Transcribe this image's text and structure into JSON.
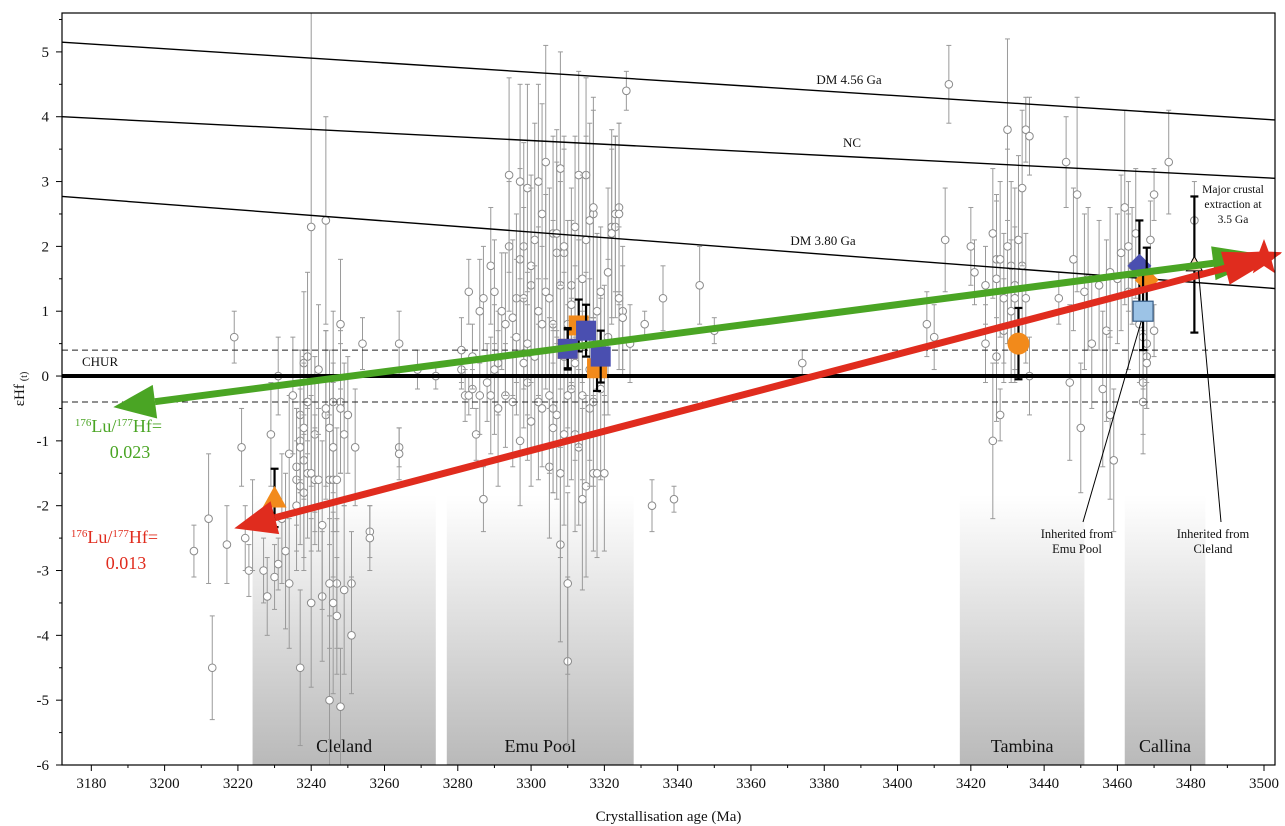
{
  "chart_data": {
    "type": "scatter",
    "xlabel": "Crystallisation age (Ma)",
    "ylabel_main": "εHf",
    "ylabel_sub": "(t)",
    "xlim": [
      3172,
      3503
    ],
    "ylim": [
      -6,
      5.6
    ],
    "xticks": [
      3180,
      3200,
      3220,
      3240,
      3260,
      3280,
      3300,
      3320,
      3340,
      3360,
      3380,
      3400,
      3420,
      3440,
      3460,
      3480,
      3500
    ],
    "yticks": [
      -6,
      -5,
      -4,
      -3,
      -2,
      -1,
      0,
      1,
      2,
      3,
      4,
      5
    ],
    "reference_lines": [
      {
        "name": "DM 4.56 Ga",
        "x": [
          3172,
          3503
        ],
        "y": [
          5.15,
          3.95
        ]
      },
      {
        "name": "NC",
        "x": [
          3172,
          3503
        ],
        "y": [
          4.0,
          3.05
        ]
      },
      {
        "name": "DM 3.80 Ga",
        "x": [
          3172,
          3503
        ],
        "y": [
          2.77,
          1.35
        ]
      }
    ],
    "chur": {
      "label": "CHUR",
      "y": 0,
      "band": [
        -0.4,
        0.4
      ]
    },
    "units": [
      {
        "name": "Cleland",
        "x0": 3224,
        "x1": 3274
      },
      {
        "name": "Emu Pool",
        "x0": 3277,
        "x1": 3328
      },
      {
        "name": "Tambina",
        "x0": 3417,
        "x1": 3451
      },
      {
        "name": "Callina",
        "x0": 3462,
        "x1": 3484
      }
    ],
    "arrows": [
      {
        "label_pre": "176",
        "label_mid": "Lu/",
        "label_pre2": "177",
        "label_post": "Hf=",
        "value": "0.023",
        "color": "#4aa524",
        "from": [
          3497,
          1.82
        ],
        "to": [
          3186,
          -0.48
        ]
      },
      {
        "label_pre": "176",
        "label_mid": "Lu/",
        "label_pre2": "177",
        "label_post": "Hf=",
        "value": "0.013",
        "color": "#e02c1e",
        "from": [
          3500,
          1.82
        ],
        "to": [
          3219,
          -2.35
        ]
      }
    ],
    "annotations": [
      {
        "text": [
          "Major crustal",
          "extraction at",
          "3.5 Ga"
        ]
      },
      {
        "text": [
          "Inherited from",
          "Emu Pool"
        ]
      },
      {
        "text": [
          "Inherited from",
          "Cleland"
        ]
      }
    ],
    "mean_symbols": [
      {
        "shape": "triangle",
        "color": "#f28a1b",
        "x": 3230,
        "y": -1.88,
        "err": 0.45
      },
      {
        "shape": "square",
        "color": "#f28a1b",
        "x": 3313,
        "y": 0.78,
        "err": 0.4
      },
      {
        "shape": "square",
        "color": "#f28a1b",
        "x": 3318,
        "y": 0.12,
        "err": 0.35
      },
      {
        "shape": "square",
        "color": "#f28a1b",
        "x": 3310,
        "y": 0.42,
        "err": 0.3
      },
      {
        "shape": "square",
        "color": "#4a4fb0",
        "x": 3310,
        "y": 0.42,
        "err": 0.32
      },
      {
        "shape": "square",
        "color": "#4a4fb0",
        "x": 3315,
        "y": 0.7,
        "err": 0.4
      },
      {
        "shape": "square",
        "color": "#4a4fb0",
        "x": 3319,
        "y": 0.3,
        "err": 0.4
      },
      {
        "shape": "circle",
        "color": "#f28a1b",
        "x": 3433,
        "y": 0.5,
        "err": 0.55
      },
      {
        "shape": "diamond",
        "color": "#4a4fb0",
        "x": 3466,
        "y": 1.7,
        "err": 0.7
      },
      {
        "shape": "diamond",
        "color": "#f28a1b",
        "x": 3468,
        "y": 1.48,
        "err": 0.5
      },
      {
        "shape": "square",
        "color": "#9cc3e6",
        "x": 3467,
        "y": 1.0,
        "err": 0.6
      },
      {
        "shape": "triangle",
        "color": "#f7d9bf",
        "x": 3481,
        "y": 1.72,
        "err": 1.05
      }
    ],
    "points": [
      [
        3208,
        -2.7,
        0.4
      ],
      [
        3213,
        -4.5,
        0.8
      ],
      [
        3212,
        -2.2,
        1.0
      ],
      [
        3217,
        -2.6,
        0.6
      ],
      [
        3219,
        0.6,
        0.4
      ],
      [
        3221,
        -1.1,
        0.6
      ],
      [
        3222,
        -2.5,
        0.5
      ],
      [
        3223,
        -3.0,
        0.4
      ],
      [
        3224,
        -2.3,
        0.7
      ],
      [
        3227,
        -3.0,
        0.5
      ],
      [
        3228,
        -3.4,
        0.6
      ],
      [
        3229,
        -0.9,
        0.8
      ],
      [
        3230,
        -3.1,
        0.5
      ],
      [
        3231,
        -2.9,
        0.4
      ],
      [
        3231,
        0.0,
        0.6
      ],
      [
        3232,
        -2.2,
        1.0
      ],
      [
        3233,
        -2.7,
        1.2
      ],
      [
        3234,
        -1.2,
        0.9
      ],
      [
        3234,
        -3.2,
        1.0
      ],
      [
        3235,
        -0.3,
        0.9
      ],
      [
        3236,
        -1.6,
        1.1
      ],
      [
        3236,
        -1.4,
        0.9
      ],
      [
        3236,
        -2.0,
        1.0
      ],
      [
        3237,
        -4.5,
        1.2
      ],
      [
        3237,
        -0.6,
        1.0
      ],
      [
        3237,
        -1.0,
        0.8
      ],
      [
        3237,
        -1.7,
        0.9
      ],
      [
        3237,
        -1.1,
        0.7
      ],
      [
        3238,
        0.2,
        1.1
      ],
      [
        3238,
        -1.3,
        1.5
      ],
      [
        3238,
        -1.8,
        1.2
      ],
      [
        3238,
        -0.8,
        1.1
      ],
      [
        3239,
        0.3,
        1.3
      ],
      [
        3239,
        -1.5,
        1.0
      ],
      [
        3239,
        -0.4,
        0.8
      ],
      [
        3240,
        2.3,
        4.0
      ],
      [
        3240,
        -3.5,
        1.3
      ],
      [
        3240,
        -1.5,
        1.2
      ],
      [
        3241,
        -1.6,
        1.0
      ],
      [
        3241,
        -0.9,
        1.2
      ],
      [
        3241,
        -1.6,
        0.8
      ],
      [
        3242,
        -1.6,
        1.1
      ],
      [
        3242,
        0.1,
        1.0
      ],
      [
        3243,
        -3.4,
        1.0
      ],
      [
        3243,
        -2.3,
        1.3
      ],
      [
        3244,
        2.4,
        1.6
      ],
      [
        3244,
        -0.6,
        1.3
      ],
      [
        3244,
        -0.5,
        1.2
      ],
      [
        3245,
        -1.6,
        1.0
      ],
      [
        3245,
        -5.0,
        1.3
      ],
      [
        3245,
        -3.2,
        1.0
      ],
      [
        3245,
        -0.8,
        1.2
      ],
      [
        3246,
        -0.4,
        1.4
      ],
      [
        3246,
        -1.6,
        1.5
      ],
      [
        3246,
        -3.5,
        1.4
      ],
      [
        3246,
        -1.1,
        1.3
      ],
      [
        3247,
        -3.2,
        1.0
      ],
      [
        3247,
        -3.7,
        0.9
      ],
      [
        3247,
        -1.6,
        0.8
      ],
      [
        3248,
        0.8,
        1.0
      ],
      [
        3248,
        -0.4,
        1.1
      ],
      [
        3248,
        -5.1,
        0.9
      ],
      [
        3248,
        -0.5,
        1.0
      ],
      [
        3249,
        -0.9,
        1.1
      ],
      [
        3249,
        -3.3,
        1.3
      ],
      [
        3250,
        -0.6,
        0.9
      ],
      [
        3251,
        -3.2,
        0.8
      ],
      [
        3251,
        -4.0,
        0.9
      ],
      [
        3252,
        -1.1,
        0.9
      ],
      [
        3254,
        0.5,
        0.4
      ],
      [
        3256,
        -2.4,
        0.4
      ],
      [
        3256,
        -2.5,
        0.5
      ],
      [
        3264,
        0.5,
        0.5
      ],
      [
        3264,
        -1.1,
        0.3
      ],
      [
        3264,
        -1.2,
        0.4
      ],
      [
        3269,
        0.1,
        0.3
      ],
      [
        3274,
        0.0,
        0.2
      ],
      [
        3281,
        0.1,
        0.3
      ],
      [
        3281,
        0.4,
        0.5
      ],
      [
        3282,
        -0.3,
        0.4
      ],
      [
        3283,
        -0.3,
        0.3
      ],
      [
        3283,
        1.3,
        0.5
      ],
      [
        3284,
        -0.2,
        0.3
      ],
      [
        3284,
        0.3,
        0.5
      ],
      [
        3285,
        -0.9,
        0.4
      ],
      [
        3286,
        -0.3,
        0.6
      ],
      [
        3286,
        1.0,
        0.8
      ],
      [
        3287,
        1.2,
        0.8
      ],
      [
        3287,
        -1.9,
        0.5
      ],
      [
        3288,
        -0.1,
        0.6
      ],
      [
        3289,
        1.7,
        0.9
      ],
      [
        3289,
        -0.3,
        0.9
      ],
      [
        3290,
        1.3,
        0.8
      ],
      [
        3290,
        0.1,
        1.0
      ],
      [
        3291,
        0.2,
        0.8
      ],
      [
        3291,
        -0.5,
        1.2
      ],
      [
        3292,
        1.0,
        0.9
      ],
      [
        3293,
        -0.3,
        0.8
      ],
      [
        3293,
        0.8,
        1.1
      ],
      [
        3294,
        2.0,
        1.0
      ],
      [
        3294,
        3.1,
        1.5
      ],
      [
        3295,
        0.9,
        1.2
      ],
      [
        3295,
        -0.4,
        1.0
      ],
      [
        3296,
        1.2,
        1.3
      ],
      [
        3296,
        0.6,
        1.2
      ],
      [
        3297,
        1.8,
        1.4
      ],
      [
        3297,
        3.0,
        1.5
      ],
      [
        3297,
        -1.0,
        1.0
      ],
      [
        3298,
        2.0,
        1.6
      ],
      [
        3298,
        1.2,
        1.4
      ],
      [
        3298,
        0.2,
        1.0
      ],
      [
        3299,
        -0.1,
        1.2
      ],
      [
        3299,
        0.5,
        1.1
      ],
      [
        3299,
        2.9,
        1.6
      ],
      [
        3300,
        -0.7,
        1.0
      ],
      [
        3300,
        1.4,
        1.5
      ],
      [
        3300,
        1.7,
        1.4
      ],
      [
        3301,
        2.1,
        1.8
      ],
      [
        3301,
        0.3,
        1.4
      ],
      [
        3302,
        -0.4,
        1.2
      ],
      [
        3302,
        3.0,
        1.5
      ],
      [
        3302,
        1.0,
        1.3
      ],
      [
        3303,
        2.5,
        1.7
      ],
      [
        3303,
        -0.5,
        0.9
      ],
      [
        3303,
        0.8,
        1.2
      ],
      [
        3304,
        1.3,
        1.5
      ],
      [
        3304,
        3.3,
        1.8
      ],
      [
        3305,
        -1.4,
        1.1
      ],
      [
        3305,
        1.2,
        1.7
      ],
      [
        3305,
        -0.3,
        1.2
      ],
      [
        3306,
        2.2,
        1.5
      ],
      [
        3306,
        0.8,
        1.6
      ],
      [
        3306,
        -0.5,
        1.3
      ],
      [
        3306,
        -0.8,
        1.0
      ],
      [
        3307,
        1.9,
        1.4
      ],
      [
        3307,
        2.2,
        1.6
      ],
      [
        3307,
        -0.6,
        1.3
      ],
      [
        3308,
        -2.6,
        1.5
      ],
      [
        3308,
        -1.5,
        1.3
      ],
      [
        3308,
        1.4,
        1.6
      ],
      [
        3308,
        3.2,
        1.8
      ],
      [
        3309,
        0.3,
        1.3
      ],
      [
        3309,
        1.9,
        1.6
      ],
      [
        3309,
        -0.9,
        1.4
      ],
      [
        3309,
        2.0,
        1.7
      ],
      [
        3310,
        -4.4,
        1.3
      ],
      [
        3310,
        -3.2,
        1.4
      ],
      [
        3310,
        0.8,
        1.6
      ],
      [
        3310,
        -0.3,
        1.4
      ],
      [
        3311,
        1.4,
        1.5
      ],
      [
        3311,
        -0.2,
        1.4
      ],
      [
        3311,
        1.1,
        1.3
      ],
      [
        3312,
        -0.9,
        1.5
      ],
      [
        3312,
        2.3,
        1.4
      ],
      [
        3312,
        0.2,
        1.5
      ],
      [
        3313,
        3.1,
        1.6
      ],
      [
        3313,
        -1.1,
        1.2
      ],
      [
        3313,
        0.5,
        1.6
      ],
      [
        3314,
        -1.9,
        1.4
      ],
      [
        3314,
        -0.3,
        1.3
      ],
      [
        3314,
        1.5,
        1.6
      ],
      [
        3315,
        3.1,
        1.5
      ],
      [
        3315,
        -1.7,
        1.4
      ],
      [
        3315,
        2.1,
        1.6
      ],
      [
        3316,
        -0.5,
        1.2
      ],
      [
        3316,
        2.4,
        1.5
      ],
      [
        3316,
        0.1,
        1.4
      ],
      [
        3317,
        -0.4,
        1.3
      ],
      [
        3317,
        2.5,
        1.6
      ],
      [
        3317,
        -1.5,
        1.2
      ],
      [
        3317,
        2.6,
        1.7
      ],
      [
        3318,
        1.0,
        1.2
      ],
      [
        3318,
        -1.5,
        1.3
      ],
      [
        3319,
        1.3,
        1.0
      ],
      [
        3319,
        -0.2,
        1.4
      ],
      [
        3320,
        -1.5,
        1.2
      ],
      [
        3320,
        0.4,
        1.0
      ],
      [
        3321,
        0.6,
        1.2
      ],
      [
        3321,
        1.6,
        1.3
      ],
      [
        3322,
        2.3,
        1.5
      ],
      [
        3322,
        2.2,
        1.3
      ],
      [
        3323,
        2.3,
        1.4
      ],
      [
        3323,
        2.5,
        1.2
      ],
      [
        3324,
        2.6,
        1.3
      ],
      [
        3324,
        2.5,
        1.4
      ],
      [
        3324,
        1.2,
        1.1
      ],
      [
        3325,
        1.0,
        1.0
      ],
      [
        3325,
        0.9,
        0.8
      ],
      [
        3326,
        4.4,
        0.3
      ],
      [
        3327,
        0.5,
        0.6
      ],
      [
        3331,
        0.8,
        0.2
      ],
      [
        3333,
        -2.0,
        0.4
      ],
      [
        3336,
        1.2,
        0.5
      ],
      [
        3339,
        -1.9,
        0.2
      ],
      [
        3346,
        1.4,
        0.6
      ],
      [
        3350,
        0.7,
        0.2
      ],
      [
        3374,
        0.2,
        0.2
      ],
      [
        3408,
        0.8,
        0.5
      ],
      [
        3410,
        0.6,
        0.5
      ],
      [
        3413,
        2.1,
        0.8
      ],
      [
        3414,
        4.5,
        0.6
      ],
      [
        3420,
        2.0,
        0.6
      ],
      [
        3421,
        1.6,
        0.5
      ],
      [
        3424,
        1.4,
        0.6
      ],
      [
        3424,
        0.5,
        0.6
      ],
      [
        3426,
        -1.0,
        1.2
      ],
      [
        3426,
        2.2,
        1.0
      ],
      [
        3427,
        1.8,
        0.9
      ],
      [
        3427,
        0.3,
        1.0
      ],
      [
        3427,
        1.5,
        1.3
      ],
      [
        3428,
        1.8,
        1.2
      ],
      [
        3428,
        -0.6,
        0.4
      ],
      [
        3429,
        0.7,
        0.8
      ],
      [
        3429,
        1.2,
        1.0
      ],
      [
        3430,
        3.8,
        1.4
      ],
      [
        3430,
        2.0,
        1.5
      ],
      [
        3431,
        1.7,
        1.3
      ],
      [
        3431,
        1.0,
        1.1
      ],
      [
        3432,
        1.4,
        1.5
      ],
      [
        3432,
        1.2,
        1.1
      ],
      [
        3433,
        2.1,
        1.3
      ],
      [
        3434,
        1.7,
        1.2
      ],
      [
        3434,
        2.9,
        1.2
      ],
      [
        3435,
        1.2,
        1.0
      ],
      [
        3435,
        3.8,
        0.5
      ],
      [
        3436,
        3.7,
        0.6
      ],
      [
        3436,
        0.0,
        0.6
      ],
      [
        3444,
        1.2,
        0.4
      ],
      [
        3446,
        3.3,
        0.7
      ],
      [
        3447,
        -0.1,
        1.2
      ],
      [
        3448,
        1.8,
        1.1
      ],
      [
        3449,
        2.8,
        1.5
      ],
      [
        3450,
        -0.8,
        1.0
      ],
      [
        3451,
        1.3,
        1.2
      ],
      [
        3452,
        1.5,
        1.1
      ],
      [
        3453,
        0.5,
        1.0
      ],
      [
        3455,
        1.4,
        1.0
      ],
      [
        3456,
        -0.2,
        1.2
      ],
      [
        3457,
        0.7,
        1.4
      ],
      [
        3458,
        1.6,
        1.0
      ],
      [
        3458,
        -0.6,
        1.3
      ],
      [
        3459,
        -1.3,
        1.1
      ],
      [
        3460,
        1.5,
        1.0
      ],
      [
        3461,
        1.9,
        1.2
      ],
      [
        3462,
        2.6,
        1.5
      ],
      [
        3463,
        1.3,
        1.2
      ],
      [
        3463,
        2.0,
        1.0
      ],
      [
        3464,
        1.7,
        0.9
      ],
      [
        3465,
        2.2,
        1.0
      ],
      [
        3466,
        0.8,
        0.9
      ],
      [
        3467,
        0.6,
        0.8
      ],
      [
        3467,
        -0.1,
        0.8
      ],
      [
        3467,
        -0.4,
        0.8
      ],
      [
        3468,
        0.3,
        0.8
      ],
      [
        3468,
        0.5,
        0.6
      ],
      [
        3468,
        0.2,
        0.7
      ],
      [
        3468,
        1.0,
        0.6
      ],
      [
        3469,
        2.1,
        0.6
      ],
      [
        3470,
        0.7,
        0.4
      ],
      [
        3470,
        2.8,
        0.4
      ],
      [
        3474,
        3.3,
        0.8
      ],
      [
        3481,
        2.4,
        0.6
      ]
    ]
  }
}
